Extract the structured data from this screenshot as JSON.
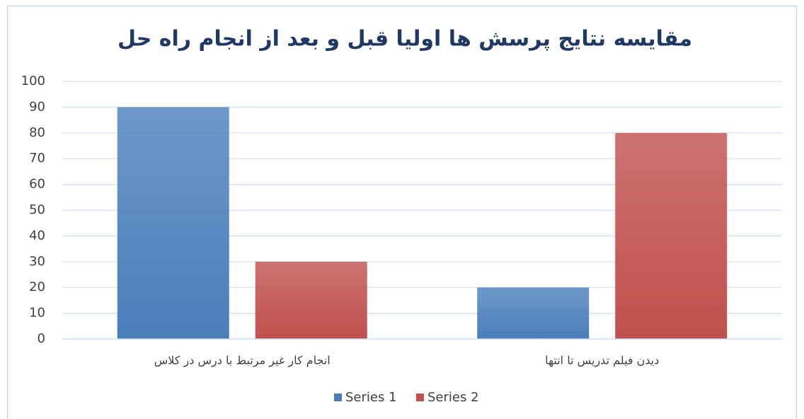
{
  "chart_data": {
    "type": "bar",
    "title": "مقایسه نتایج پرسش ها اولیا قبل و بعد از انجام راه حل",
    "categories": [
      "انجام کار غیر مرتبط با درس در کلاس",
      "دیدن فیلم تدریس تا انتها"
    ],
    "series": [
      {
        "name": "Series 1",
        "color": "#4a7ebb",
        "values": [
          90,
          20
        ]
      },
      {
        "name": "Series 2",
        "color": "#c0504d",
        "values": [
          30,
          80
        ]
      }
    ],
    "ylim": [
      0,
      100
    ],
    "yticks": [
      0,
      10,
      20,
      30,
      40,
      50,
      60,
      70,
      80,
      90,
      100
    ],
    "grid": true,
    "legend": "bottom"
  }
}
